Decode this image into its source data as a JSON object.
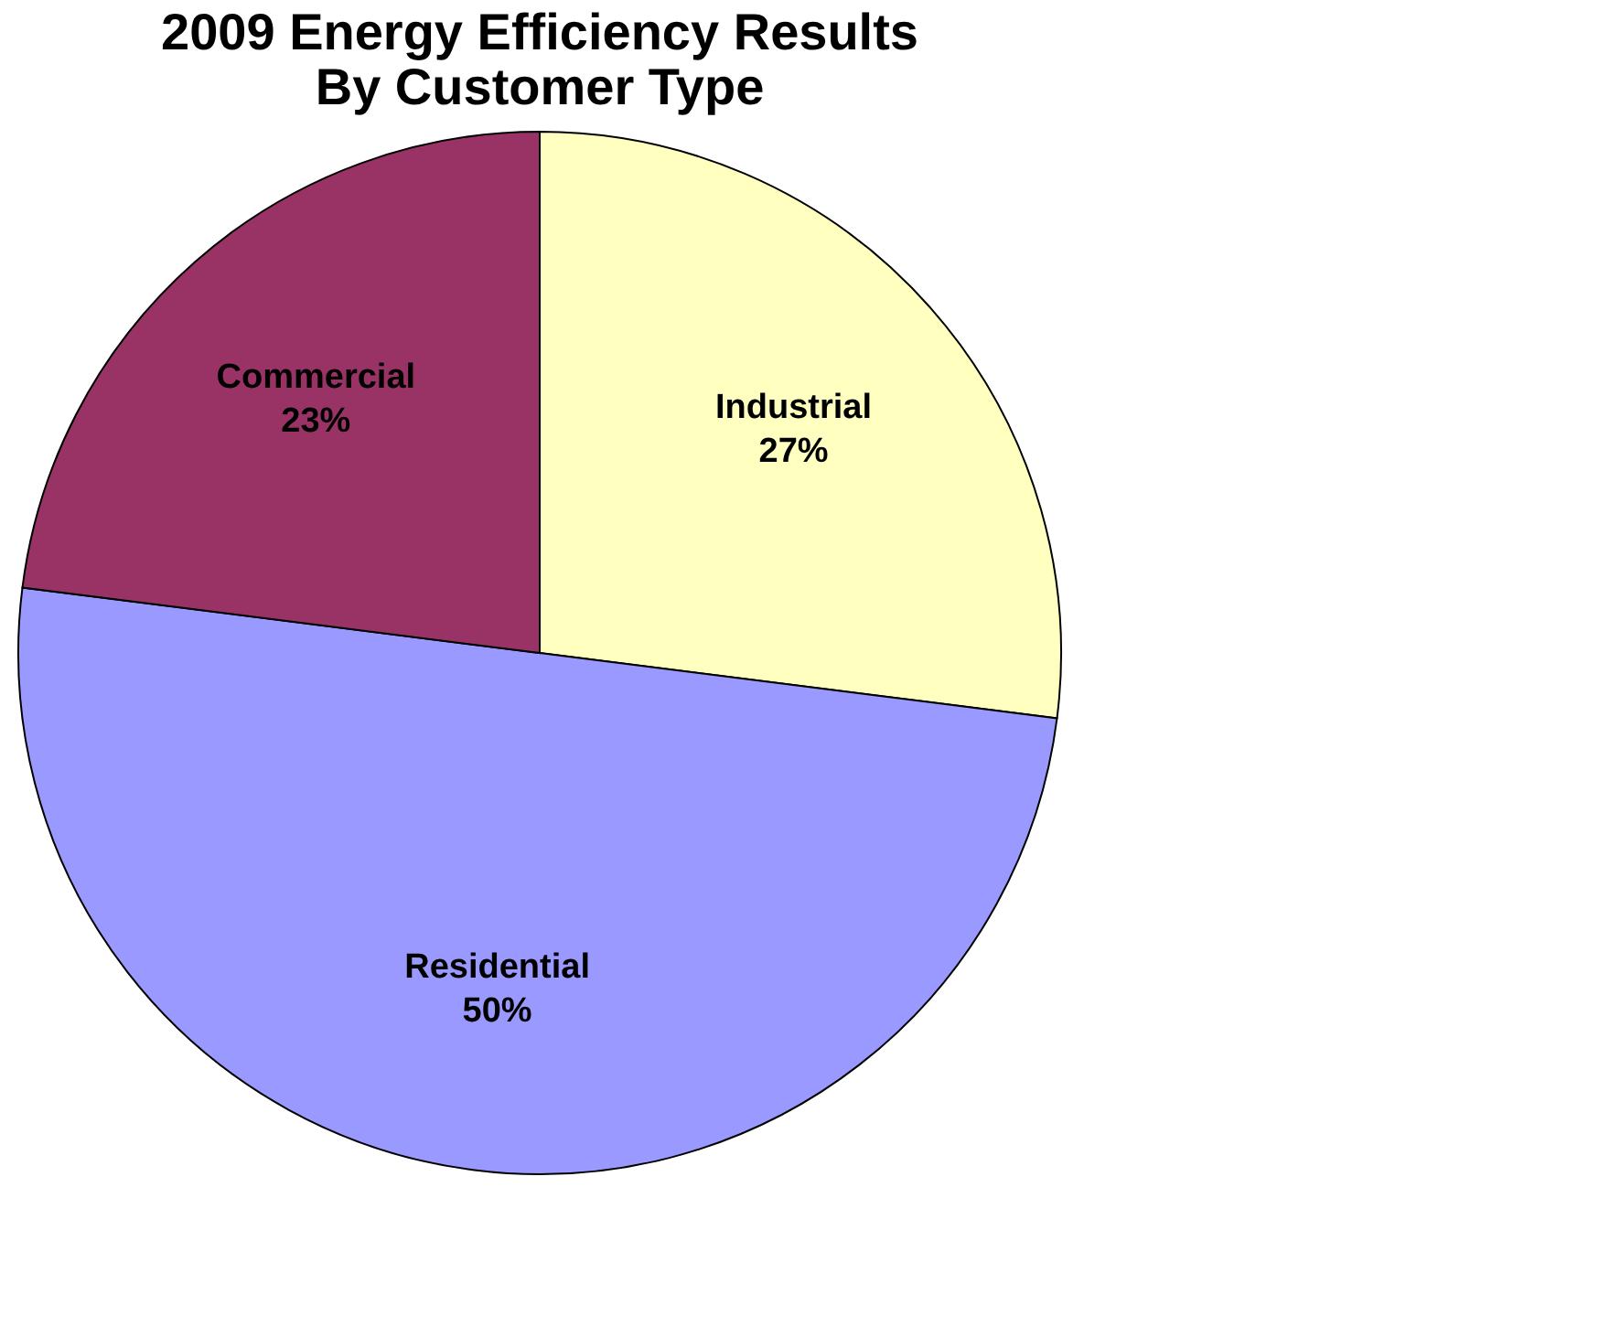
{
  "chart_data": {
    "type": "pie",
    "title": "2009 Energy Efficiency Results By Customer Type",
    "categories": [
      "Industrial",
      "Residential",
      "Commercial"
    ],
    "values": [
      27,
      50,
      23
    ],
    "value_labels": [
      "27%",
      "50%",
      "23%"
    ],
    "colors": [
      "#ffffc0",
      "#9999ff",
      "#993366"
    ],
    "legend": false
  }
}
